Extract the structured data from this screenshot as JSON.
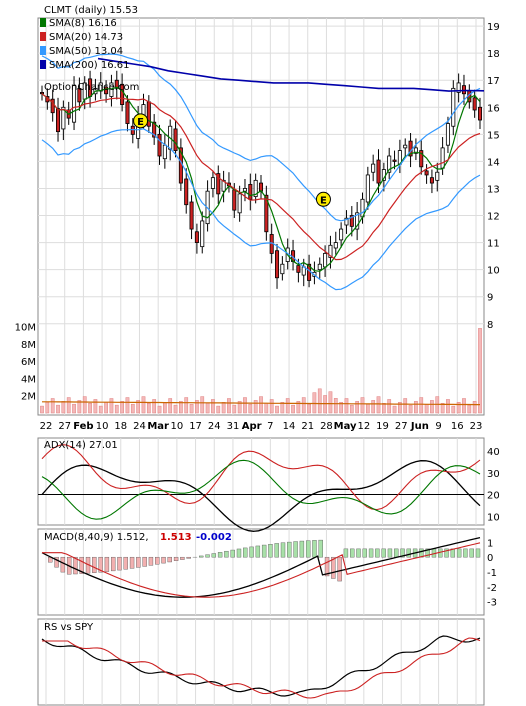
{
  "chart_data": [
    {
      "type": "candlestick",
      "panel": "price",
      "title": "CLMT (daily) 15.53",
      "watermark": "OptionChance.com",
      "legend": [
        {
          "name": "SMA(8) 16.16",
          "color": "#007700"
        },
        {
          "name": "SMA(20) 14.73",
          "color": "#cc2222"
        },
        {
          "name": "SMA(50) 13.04",
          "color": "#3399ff"
        },
        {
          "name": "SMA(200) 16.61",
          "color": "#0000aa"
        }
      ],
      "legend_placement": "top-left",
      "ylim": [
        8,
        19
      ],
      "y_ticks": [
        "19",
        "18",
        "17",
        "16",
        "15",
        "14",
        "13",
        "12",
        "11",
        "10",
        "9",
        "8"
      ],
      "x_ticks": [
        "22",
        "27",
        "Feb",
        "10",
        "18",
        "24",
        "Mar",
        "10",
        "17",
        "24",
        "31",
        "Apr",
        "7",
        "14",
        "21",
        "28",
        "May",
        "12",
        "19",
        "27",
        "Jun",
        "9",
        "16",
        "23"
      ],
      "earnings_markers": [
        {
          "label": "E",
          "x": 0.23,
          "y": 15.5
        },
        {
          "label": "E",
          "x": 0.64,
          "y": 12.6
        }
      ],
      "close": [
        16.5,
        16.2,
        15.8,
        15.1,
        16.0,
        15.6,
        16.8,
        16.2,
        16.9,
        16.4,
        16.7,
        16.9,
        16.5,
        16.9,
        16.7,
        16.1,
        15.4,
        15.0,
        15.7,
        16.1,
        15.3,
        14.9,
        14.2,
        14.6,
        15.3,
        14.4,
        13.2,
        12.4,
        11.5,
        11.0,
        11.8,
        12.9,
        13.4,
        12.8,
        13.3,
        13.1,
        12.2,
        12.8,
        13.0,
        12.6,
        13.3,
        12.9,
        11.4,
        10.6,
        9.7,
        10.2,
        10.8,
        10.3,
        9.9,
        10.1,
        9.6,
        9.9,
        10.2,
        10.6,
        10.9,
        11.0,
        11.5,
        11.9,
        11.6,
        12.1,
        12.6,
        13.5,
        13.9,
        13.2,
        13.7,
        14.2,
        14.0,
        14.4,
        14.6,
        14.2,
        14.5,
        13.8,
        13.5,
        13.2,
        13.6,
        14.5,
        15.4,
        16.7,
        16.9,
        16.5,
        16.2,
        15.9,
        15.53
      ],
      "sma200": [
        17.8,
        17.7,
        17.6,
        17.5,
        17.35,
        17.25,
        17.15,
        17.05,
        17.0,
        16.95,
        16.9,
        16.9,
        16.9,
        16.85,
        16.8,
        16.75,
        16.7,
        16.7,
        16.7,
        16.65,
        16.6,
        16.62,
        16.61
      ],
      "series": [
        {
          "name": "Volume",
          "unit": "shares",
          "y_ticks": [
            "10M",
            "8M",
            "6M",
            "4M",
            "2M"
          ],
          "ylim": [
            0,
            11000000
          ]
        },
        {
          "name": "ADX(14) 27.01",
          "y_ticks": [
            "40",
            "30",
            "20",
            "10"
          ],
          "ylim": [
            8,
            45
          ]
        },
        {
          "name": "MACD(8,40,9) 1.512,",
          "signal": "1.513",
          "histogram": "-0.002",
          "y_ticks": [
            "1",
            "0",
            "-1",
            "-2",
            "-3"
          ],
          "ylim": [
            -3.8,
            1.8
          ]
        },
        {
          "name": "RS vs SPY"
        }
      ]
    }
  ]
}
